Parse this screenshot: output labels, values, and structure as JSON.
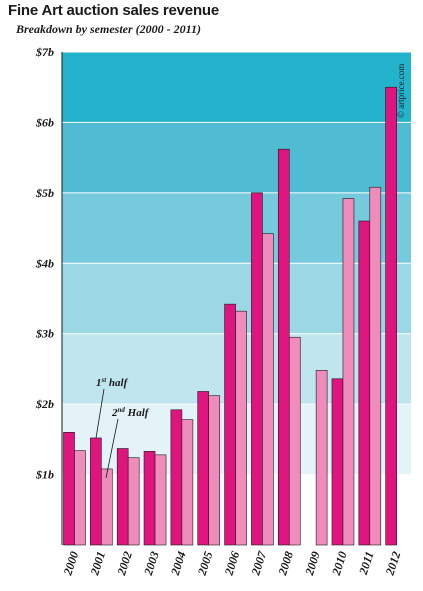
{
  "title": "Fine Art auction sales revenue",
  "subtitle": "Breakdown by semester (2000 - 2011)",
  "credit": "© artprice.com",
  "colors": {
    "first_half": "#e0147f",
    "second_half": "#f08cbc",
    "bands": [
      "#ffffff",
      "#e3f3f7",
      "#bfe5ee",
      "#9bd8e6",
      "#75cadd",
      "#4fbcd3",
      "#23b3cc"
    ]
  },
  "chart_data": {
    "type": "bar",
    "title": "Fine Art auction sales revenue",
    "subtitle": "Breakdown by semester (2000 - 2011)",
    "categories": [
      "2000",
      "2001",
      "2002",
      "2003",
      "2004",
      "2005",
      "2006",
      "2007",
      "2008",
      "2009",
      "2010",
      "2011",
      "2012"
    ],
    "series": [
      {
        "name": "1st half",
        "values": [
          1.6,
          1.52,
          1.37,
          1.33,
          1.92,
          2.18,
          3.42,
          5.0,
          5.62,
          null,
          2.36,
          4.6,
          6.5
        ]
      },
      {
        "name": "2nd Half",
        "values": [
          1.34,
          1.08,
          1.24,
          1.28,
          1.78,
          2.12,
          3.32,
          4.42,
          2.95,
          2.48,
          4.92,
          5.08,
          null
        ]
      }
    ],
    "yticks": [
      "$1b",
      "$2b",
      "$3b",
      "$4b",
      "$5b",
      "$6b",
      "$7b"
    ],
    "ylim": [
      0,
      7
    ],
    "annotations": {
      "first": "1",
      "first_sup": "st",
      "first_suffix": " half",
      "second": "2",
      "second_sup": "nd",
      "second_suffix": " Half"
    },
    "grid": true
  }
}
